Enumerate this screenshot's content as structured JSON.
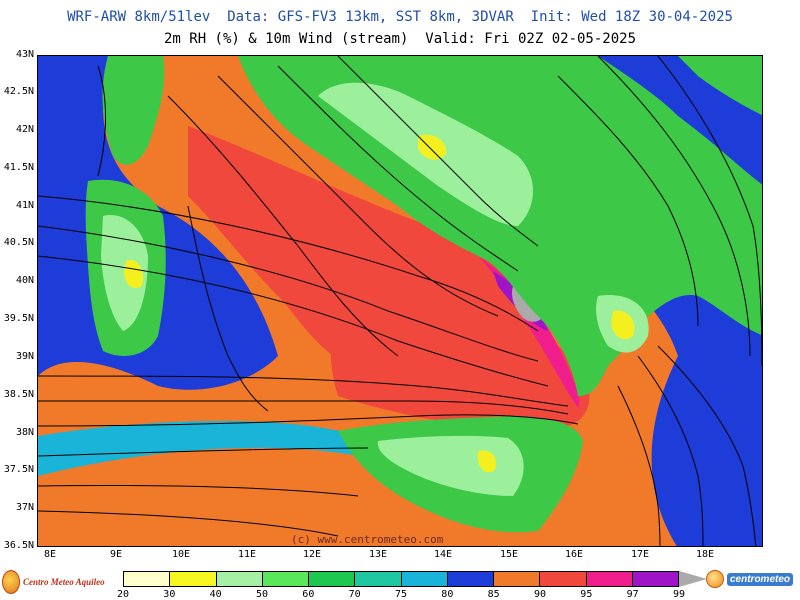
{
  "header": {
    "title_line1": "WRF-ARW 8km/51lev  Data: GFS-FV3 13km, SST 8km, 3DVAR  Init: Wed 18Z 30-04-2025",
    "title_line2": "2m RH (%) & 10m Wind (stream)  Valid: Fri 02Z 02-05-2025"
  },
  "map": {
    "latitude_labels": [
      "43N",
      "42.5N",
      "42N",
      "41.5N",
      "41N",
      "40.5N",
      "40N",
      "39.5N",
      "39N",
      "38.5N",
      "38N",
      "37.5N",
      "37N",
      "36.5N"
    ],
    "longitude_labels": [
      "8E",
      "9E",
      "10E",
      "11E",
      "12E",
      "13E",
      "14E",
      "15E",
      "16E",
      "17E",
      "18E"
    ],
    "watermark": "(c) www.centrometeo.com",
    "colors": {
      "sea_high_rh": "#f0483c",
      "sea_mid_rh": "#f07a2a",
      "sea_low_rh": "#1e3cd8",
      "land_green": "#3ec848",
      "land_lightgreen": "#9cf09c",
      "land_yellow": "#f4f020",
      "streamline": "#000000"
    }
  },
  "colorbar": {
    "ticks": [
      "20",
      "30",
      "40",
      "50",
      "60",
      "70",
      "75",
      "80",
      "85",
      "90",
      "95",
      "97",
      "99"
    ],
    "colors": [
      "#ffffcc",
      "#f6f620",
      "#a6f0a6",
      "#5ae85a",
      "#1ec850",
      "#1ec8a0",
      "#1ab4d8",
      "#1e3cd8",
      "#f07a2a",
      "#f0483c",
      "#f01e8c",
      "#a014c8",
      "#aaaaaa"
    ]
  },
  "logos": {
    "left_text": "Centro Meteo Aquileo",
    "right_text": "centrometeo"
  }
}
